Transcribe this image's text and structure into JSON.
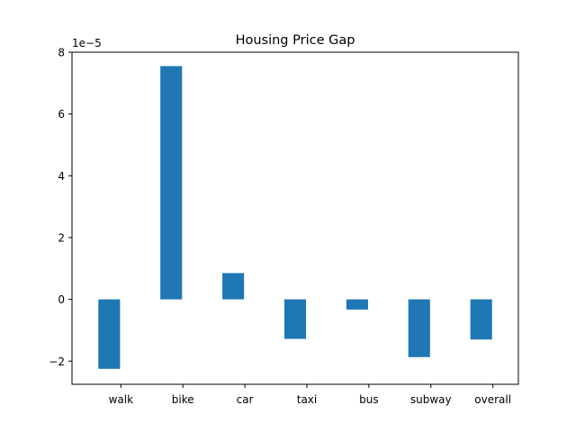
{
  "chart_data": {
    "type": "bar",
    "title": "Housing Price Gap",
    "xlabel": "",
    "ylabel": "",
    "y_offset_label": "1e−5",
    "y_scale_factor": 1e-05,
    "categories": [
      "walk",
      "bike",
      "car",
      "taxi",
      "bus",
      "subway",
      "overall"
    ],
    "values": [
      -2.25e-05,
      7.55e-05,
      8.5e-06,
      -1.28e-05,
      -3.3e-06,
      -1.87e-05,
      -1.3e-05
    ],
    "ylim": [
      -2.75e-05,
      8e-05
    ],
    "yticks": [
      -2e-05,
      0,
      2e-05,
      4e-05,
      6e-05,
      8e-05
    ],
    "ytick_labels": [
      "−2",
      "0",
      "2",
      "4",
      "6",
      "8"
    ],
    "bar_color": "#1f77b4",
    "grid": false,
    "legend": "none"
  }
}
